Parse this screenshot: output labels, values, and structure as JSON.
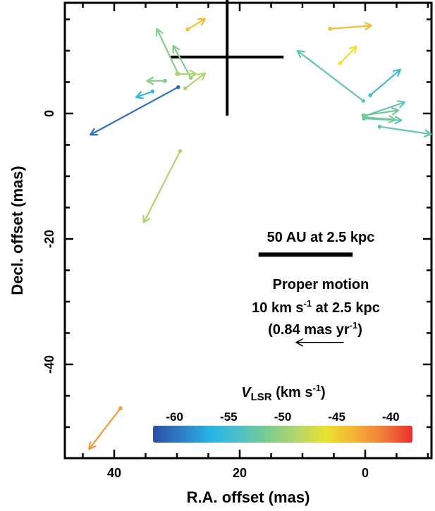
{
  "chart_data": {
    "type": "scatter",
    "xlabel": "R.A. offset (mas)",
    "ylabel": "Decl. offset (mas)",
    "xlim": [
      48,
      -10
    ],
    "ylim": [
      -55,
      18
    ],
    "x_ticks": [
      40,
      20,
      0
    ],
    "y_ticks": [
      0,
      -20,
      -40
    ],
    "grid": false,
    "center_cross": {
      "x": 22,
      "y": 9,
      "half_width_x": 9,
      "half_height_y": 5.5
    },
    "scale_bar": {
      "label": "50 AU at 2.5 kpc",
      "x_from": 17,
      "x_to": 2,
      "y": -22.5
    },
    "proper_motion_reference": {
      "lines": [
        "Proper motion",
        "10 km s-1 at 2.5 kpc",
        "(0.84 mas yr-1)"
      ],
      "x_from": 3.5,
      "x_to": 11,
      "y": -36.5
    },
    "colorbar": {
      "title": "V_LSR (km s^-1)",
      "vmin": -62,
      "vmax": -38,
      "ticks": [
        -60,
        -55,
        -50,
        -45,
        -40
      ],
      "colors": [
        "#2a4fa3",
        "#2f7ec6",
        "#27b4e6",
        "#4fc0c8",
        "#7ccc8c",
        "#b4d56a",
        "#e9e32f",
        "#f6b034",
        "#f07d3b",
        "#ea2e2d"
      ]
    },
    "vectors": [
      {
        "x": 28.3,
        "y": 13.4,
        "dx": -2.8,
        "dy": 1.7,
        "v": -44
      },
      {
        "x": 5.6,
        "y": 13.5,
        "dx": -6.6,
        "dy": 0.5,
        "v": -44
      },
      {
        "x": 4.0,
        "y": 8.0,
        "dx": -2.6,
        "dy": 2.7,
        "v": -46
      },
      {
        "x": 29.8,
        "y": 6.3,
        "dx": 3.4,
        "dy": 7.2,
        "v": -51
      },
      {
        "x": 27.8,
        "y": 5.7,
        "dx": 2.8,
        "dy": 5.1,
        "v": -51
      },
      {
        "x": 30.0,
        "y": 6.3,
        "dx": -3.1,
        "dy": 0.0,
        "v": -49
      },
      {
        "x": 28.7,
        "y": 4.0,
        "dx": -3.2,
        "dy": 2.4,
        "v": -49
      },
      {
        "x": 31.9,
        "y": 5.2,
        "dx": 2.9,
        "dy": 0.0,
        "v": -51
      },
      {
        "x": 33.9,
        "y": 3.5,
        "dx": 2.6,
        "dy": -0.9,
        "v": -56
      },
      {
        "x": 29.8,
        "y": 4.2,
        "dx": 14.0,
        "dy": -7.6,
        "v": -60
      },
      {
        "x": 29.5,
        "y": -6.0,
        "dx": 5.8,
        "dy": -11.4,
        "v": -49
      },
      {
        "x": 0.3,
        "y": 2.0,
        "dx": 10.5,
        "dy": 8.0,
        "v": -53
      },
      {
        "x": -0.8,
        "y": 2.9,
        "dx": -4.8,
        "dy": 4.1,
        "v": -55
      },
      {
        "x": 0.1,
        "y": -0.4,
        "dx": -6.4,
        "dy": 2.2,
        "v": -53
      },
      {
        "x": 0.3,
        "y": -0.3,
        "dx": -5.6,
        "dy": 0.8,
        "v": -52
      },
      {
        "x": -0.2,
        "y": -0.6,
        "dx": -4.6,
        "dy": -0.4,
        "v": -51
      },
      {
        "x": 0.2,
        "y": -0.8,
        "dx": -6.0,
        "dy": -0.3,
        "v": -53
      },
      {
        "x": -2.3,
        "y": -2.1,
        "dx": -8.2,
        "dy": -1.2,
        "v": -53
      },
      {
        "x": 39.0,
        "y": -47.0,
        "dx": 5.0,
        "dy": -6.5,
        "v": -42
      }
    ]
  }
}
